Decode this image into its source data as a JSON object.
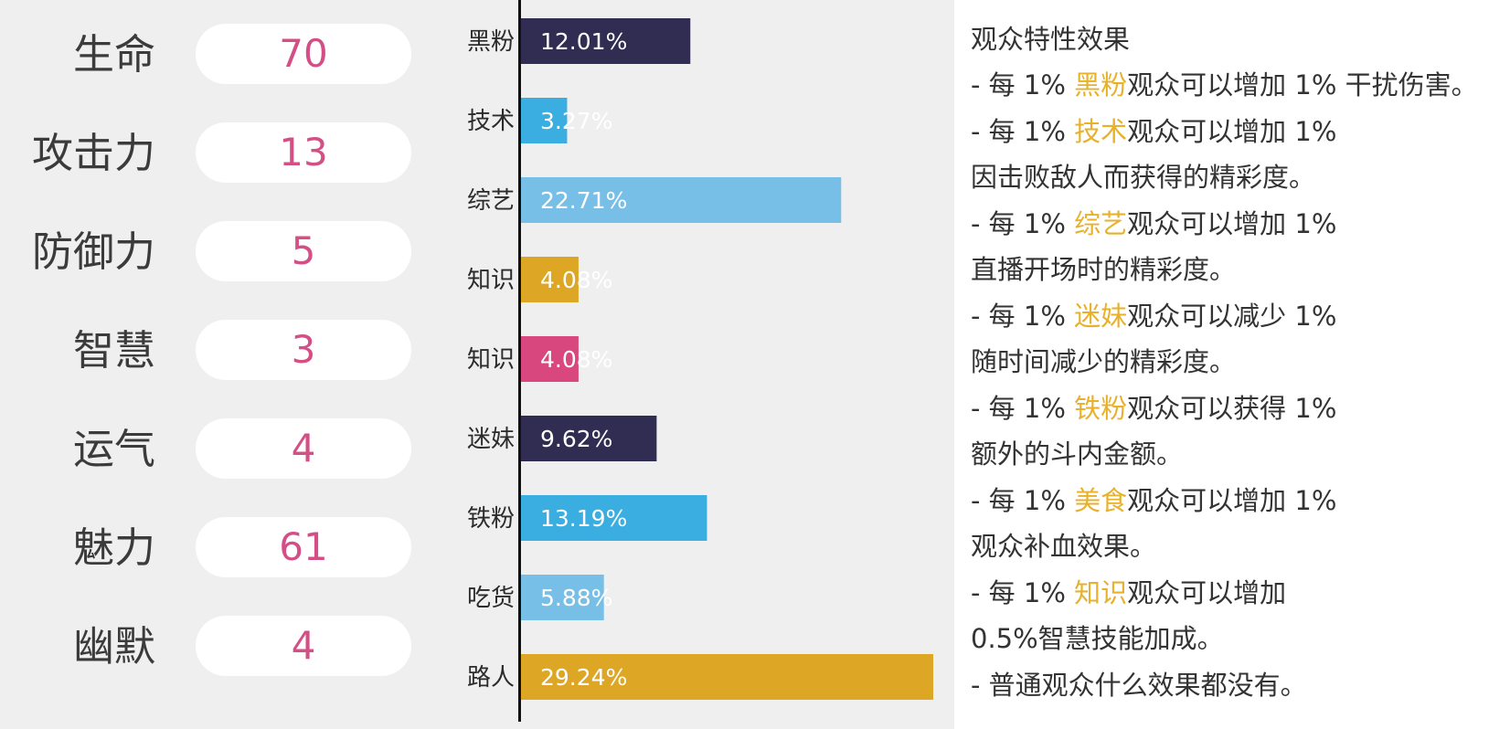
{
  "stats": [
    {
      "label": "生命",
      "value": "70"
    },
    {
      "label": "攻击力",
      "value": "13"
    },
    {
      "label": "防御力",
      "value": "5"
    },
    {
      "label": "智慧",
      "value": "3"
    },
    {
      "label": "运气",
      "value": "4"
    },
    {
      "label": "魅力",
      "value": "61"
    },
    {
      "label": "幽默",
      "value": "4"
    }
  ],
  "chart_data": {
    "type": "bar",
    "orientation": "horizontal",
    "categories": [
      "黑粉",
      "技术",
      "综艺",
      "知识",
      "知识",
      "迷妹",
      "铁粉",
      "吃货",
      "路人"
    ],
    "values": [
      12.01,
      3.27,
      22.71,
      4.08,
      4.08,
      9.62,
      13.19,
      5.88,
      29.24
    ],
    "value_labels": [
      "12.01%",
      "3.27%",
      "22.71%",
      "4.08%",
      "4.08%",
      "9.62%",
      "13.19%",
      "5.88%",
      "29.24%"
    ],
    "colors": [
      "#302c52",
      "#3aaee0",
      "#78bfe8",
      "#dda624",
      "#d8477d",
      "#302c52",
      "#3aaee0",
      "#78bfe8",
      "#dda624"
    ],
    "xlim": [
      0,
      29.24
    ],
    "grid": false
  },
  "effects": {
    "title": "观众特性效果",
    "lines": [
      {
        "pre": "- 每 1% ",
        "hl": "黑粉",
        "post": "观众可以增加 1% 干扰伤害。"
      },
      {
        "pre": "- 每 1% ",
        "hl": "技术",
        "post": "观众可以增加 1%"
      },
      {
        "pre": "因击败敌人而获得的精彩度。",
        "hl": "",
        "post": ""
      },
      {
        "pre": "- 每 1% ",
        "hl": "综艺",
        "post": "观众可以增加 1%"
      },
      {
        "pre": "直播开场时的精彩度。",
        "hl": "",
        "post": ""
      },
      {
        "pre": "- 每 1% ",
        "hl": "迷妹",
        "post": "观众可以减少 1%"
      },
      {
        "pre": "随时间减少的精彩度。",
        "hl": "",
        "post": ""
      },
      {
        "pre": "- 每 1% ",
        "hl": "铁粉",
        "post": "观众可以获得 1%"
      },
      {
        "pre": "额外的斗内金额。",
        "hl": "",
        "post": ""
      },
      {
        "pre": "- 每 1% ",
        "hl": "美食",
        "post": "观众可以增加 1%"
      },
      {
        "pre": "观众补血效果。",
        "hl": "",
        "post": ""
      },
      {
        "pre": "- 每 1% ",
        "hl": "知识",
        "post": "观众可以增加"
      },
      {
        "pre": "0.5%智慧技能加成。",
        "hl": "",
        "post": ""
      },
      {
        "pre": "- 普通观众什么效果都没有。",
        "hl": "",
        "post": ""
      }
    ]
  },
  "colors": {
    "highlight": "#e7b12b",
    "stat_value": "#d34f86"
  }
}
